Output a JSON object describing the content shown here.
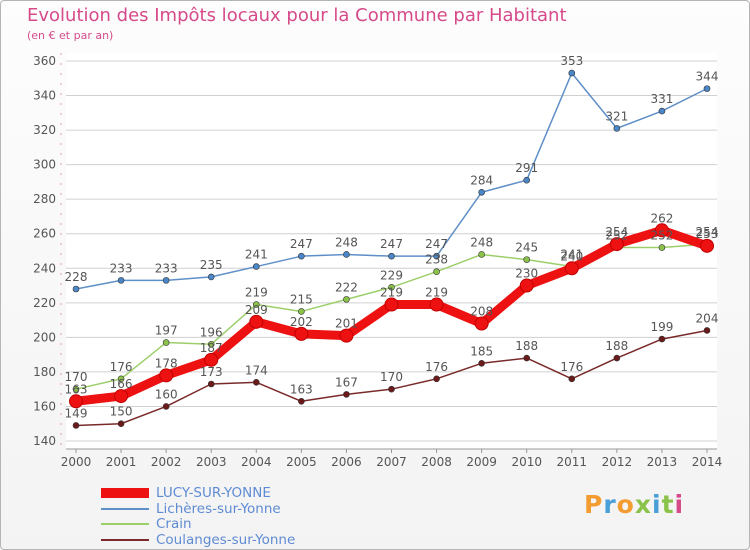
{
  "header": {
    "title": "Evolution des Impôts locaux pour la Commune par Habitant",
    "subtitle": "(en € et par an)"
  },
  "brand": {
    "text": "Proxiti",
    "colors": [
      "#f39c32",
      "#4a9fd8",
      "#f39c32",
      "#8bc34a",
      "#4a9fd8",
      "#8bc34a",
      "#d64a8a"
    ]
  },
  "colors": {
    "text": "#555555",
    "grid": "#d0d0d0",
    "title": "#d64a8a",
    "legend_text": "#5f8bd4"
  },
  "chart_data": {
    "type": "line",
    "title": "Evolution des Impôts locaux pour la Commune par Habitant",
    "subtitle": "(en € et par an)",
    "xlabel": "",
    "ylabel": "",
    "x": [
      "2000",
      "2001",
      "2002",
      "2003",
      "2004",
      "2005",
      "2006",
      "2007",
      "2008",
      "2009",
      "2010",
      "2011",
      "2012",
      "2013",
      "2014"
    ],
    "ylim": [
      140,
      360
    ],
    "yticks": [
      140,
      160,
      180,
      200,
      220,
      240,
      260,
      280,
      300,
      320,
      340,
      360
    ],
    "grid": "horizontal",
    "legend_position": "bottom-left",
    "series": [
      {
        "name": "Lichères-sur-Yonne",
        "color": "#5f8fc7",
        "marker": "#4a86c8",
        "values": [
          228,
          233,
          233,
          235,
          241,
          247,
          248,
          247,
          247,
          284,
          291,
          353,
          321,
          331,
          344
        ]
      },
      {
        "name": "Crain",
        "color": "#9ccf6a",
        "marker": "#8bc34a",
        "values": [
          170,
          176,
          197,
          196,
          219,
          215,
          222,
          229,
          238,
          248,
          245,
          241,
          252,
          252,
          254
        ]
      },
      {
        "name": "Coulanges-sur-Yonne",
        "color": "#7a2a2a",
        "marker": "#6b1a1a",
        "values": [
          149,
          150,
          160,
          173,
          174,
          163,
          167,
          170,
          176,
          185,
          188,
          176,
          188,
          199,
          204
        ]
      },
      {
        "name": "LUCY-SUR-YONNE",
        "color": "#ee1111",
        "marker": "#ee1111",
        "bold": true,
        "values": [
          163,
          166,
          178,
          187,
          209,
          202,
          201,
          219,
          219,
          208,
          230,
          240,
          254,
          262,
          253
        ]
      }
    ],
    "legend_order": [
      "LUCY-SUR-YONNE",
      "Lichères-sur-Yonne",
      "Crain",
      "Coulanges-sur-Yonne"
    ]
  }
}
